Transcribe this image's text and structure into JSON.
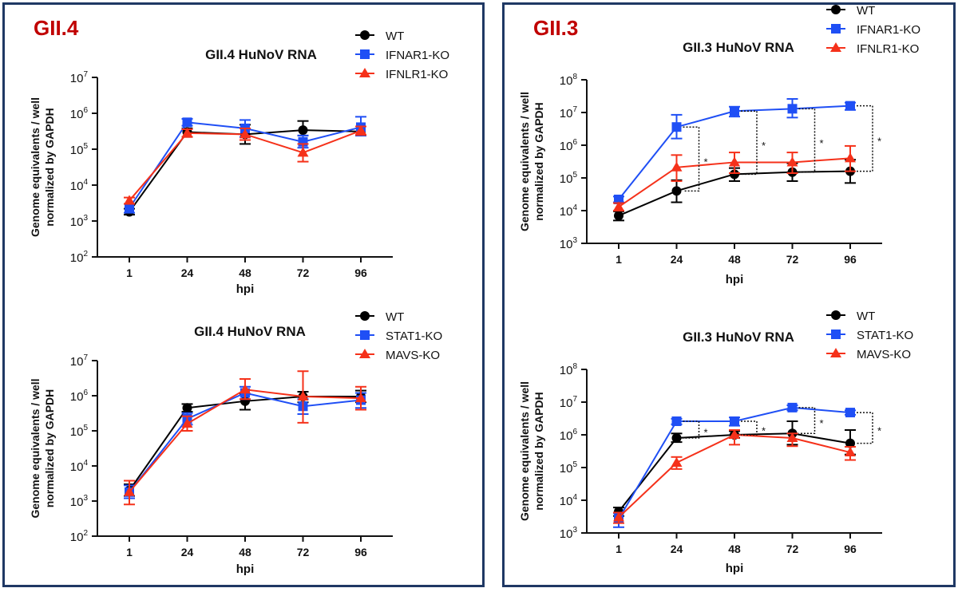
{
  "panels": [
    {
      "label": "GII.4"
    },
    {
      "label": "GII.3"
    }
  ],
  "colors": {
    "WT": "#000000",
    "blue": "#1f4ff5",
    "red": "#f5311a",
    "border": "#1f3864",
    "label": "#c00000"
  },
  "chart_data": [
    {
      "type": "line",
      "title": "GII.4 HuNoV RNA",
      "xlabel": "hpi",
      "ylabel": "Genome equivalents / well",
      "ylabel2": "normalized by GAPDH",
      "y_scale": "log",
      "ylim_exp": [
        2,
        7
      ],
      "categories": [
        "1",
        "24",
        "48",
        "72",
        "96"
      ],
      "legend_position": "top-right",
      "series": [
        {
          "name": "WT",
          "marker": "circle",
          "color": "#000000",
          "values": [
            1800.0,
            300000.0,
            260000.0,
            340000.0,
            310000.0
          ],
          "err_lo": [
            1500.0,
            220000.0,
            140000.0,
            240000.0,
            240000.0
          ],
          "err_hi": [
            2200.0,
            380000.0,
            480000.0,
            610000.0,
            430000.0
          ]
        },
        {
          "name": "IFNAR1-KO",
          "marker": "square",
          "color": "#1f4ff5",
          "values": [
            2300.0,
            560000.0,
            380000.0,
            160000.0,
            410000.0
          ],
          "err_lo": [
            1700.0,
            450000.0,
            220000.0,
            110000.0,
            240000.0
          ],
          "err_hi": [
            3000.0,
            700000.0,
            650000.0,
            240000.0,
            800000.0
          ]
        },
        {
          "name": "IFNLR1-KO",
          "marker": "triangle",
          "color": "#f5311a",
          "values": [
            3700.0,
            280000.0,
            260000.0,
            80000.0,
            330000.0
          ],
          "err_lo": [
            3000.0,
            220000.0,
            180000.0,
            45000.0,
            250000.0
          ],
          "err_hi": [
            4500.0,
            360000.0,
            380000.0,
            140000.0,
            430000.0
          ]
        }
      ],
      "significance": []
    },
    {
      "type": "line",
      "title": "GII.4 HuNoV RNA",
      "xlabel": "hpi",
      "ylabel": "Genome equivalents / well",
      "ylabel2": "normalized by GAPDH",
      "y_scale": "log",
      "ylim_exp": [
        2,
        7
      ],
      "categories": [
        "1",
        "24",
        "48",
        "72",
        "96"
      ],
      "legend_position": "top-right",
      "series": [
        {
          "name": "WT",
          "marker": "circle",
          "color": "#000000",
          "values": [
            2000.0,
            450000.0,
            700000.0,
            950000.0,
            950000.0
          ],
          "err_lo": [
            1400.0,
            350000.0,
            400000.0,
            650000.0,
            650000.0
          ],
          "err_hi": [
            3000.0,
            580000.0,
            1100000.0,
            1300000.0,
            1400000.0
          ]
        },
        {
          "name": "STAT1-KO",
          "marker": "square",
          "color": "#1f4ff5",
          "values": [
            1800.0,
            220000.0,
            1200000.0,
            500000.0,
            750000.0
          ],
          "err_lo": [
            1200.0,
            150000.0,
            800000.0,
            300000.0,
            450000.0
          ],
          "err_hi": [
            2800.0,
            320000.0,
            1800000.0,
            800000.0,
            1200000.0
          ]
        },
        {
          "name": "MAVS-KO",
          "marker": "triangle",
          "color": "#f5311a",
          "values": [
            1800.0,
            160000.0,
            1500000.0,
            950000.0,
            850000.0
          ],
          "err_lo": [
            800.0,
            100000.0,
            800000.0,
            170000.0,
            400000.0
          ],
          "err_hi": [
            3800.0,
            260000.0,
            3000000.0,
            5000000.0,
            1800000.0
          ]
        }
      ],
      "significance": []
    },
    {
      "type": "line",
      "title": "GII.3 HuNoV RNA",
      "xlabel": "hpi",
      "ylabel": "Genome equivalents / well",
      "ylabel2": "normalized by GAPDH",
      "y_scale": "log",
      "ylim_exp": [
        3,
        8
      ],
      "categories": [
        "1",
        "24",
        "48",
        "72",
        "96"
      ],
      "legend_position": "top-right",
      "series": [
        {
          "name": "WT",
          "marker": "circle",
          "color": "#000000",
          "values": [
            7000.0,
            40000.0,
            130000.0,
            150000.0,
            160000.0
          ],
          "err_lo": [
            5000.0,
            18000.0,
            80000.0,
            80000.0,
            70000.0
          ],
          "err_hi": [
            9500.0,
            85000.0,
            200000.0,
            280000.0,
            360000.0
          ]
        },
        {
          "name": "IFNAR1-KO",
          "marker": "square",
          "color": "#1f4ff5",
          "values": [
            22000.0,
            3600000.0,
            11000000.0,
            13000000.0,
            16000000.0
          ],
          "err_lo": [
            18000.0,
            1600000.0,
            7500000.0,
            7000000.0,
            12000000.0
          ],
          "err_hi": [
            27000.0,
            8500000.0,
            15000000.0,
            26000000.0,
            20000000.0
          ]
        },
        {
          "name": "IFNLR1-KO",
          "marker": "triangle",
          "color": "#f5311a",
          "values": [
            13000.0,
            210000.0,
            300000.0,
            300000.0,
            400000.0
          ],
          "err_lo": [
            10000.0,
            80000.0,
            140000.0,
            140000.0,
            160000.0
          ],
          "err_hi": [
            17000.0,
            500000.0,
            600000.0,
            600000.0,
            950000.0
          ]
        }
      ],
      "significance": [
        {
          "at": "24",
          "hi": 3600000.0,
          "lo": 40000.0,
          "label": "*"
        },
        {
          "at": "48",
          "hi": 11000000.0,
          "lo": 130000.0,
          "label": "*"
        },
        {
          "at": "72",
          "hi": 13000000.0,
          "lo": 150000.0,
          "label": "*"
        },
        {
          "at": "96",
          "hi": 16000000.0,
          "lo": 160000.0,
          "label": "*"
        }
      ]
    },
    {
      "type": "line",
      "title": "GII.3 HuNoV RNA",
      "xlabel": "hpi",
      "ylabel": "Genome equivalents / well",
      "ylabel2": "normalized by GAPDH",
      "y_scale": "log",
      "ylim_exp": [
        3,
        8
      ],
      "categories": [
        "1",
        "24",
        "48",
        "72",
        "96"
      ],
      "legend_position": "top-right",
      "series": [
        {
          "name": "WT",
          "marker": "circle",
          "color": "#000000",
          "values": [
            4500.0,
            800000.0,
            1000000.0,
            1100000.0,
            550000.0
          ],
          "err_lo": [
            3300.0,
            600000.0,
            800000.0,
            500000.0,
            250000.0
          ],
          "err_hi": [
            6000.0,
            1100000.0,
            1300000.0,
            2600000.0,
            1400000.0
          ]
        },
        {
          "name": "STAT1-KO",
          "marker": "square",
          "color": "#1f4ff5",
          "values": [
            2700.0,
            2600000.0,
            2600000.0,
            6800000.0,
            4800000.0
          ],
          "err_lo": [
            1500.0,
            2100000.0,
            1900000.0,
            5600000.0,
            4100000.0
          ],
          "err_hi": [
            4000.0,
            3100000.0,
            3400000.0,
            8000000.0,
            5600000.0
          ]
        },
        {
          "name": "MAVS-KO",
          "marker": "triangle",
          "color": "#f5311a",
          "values": [
            3000.0,
            140000.0,
            1000000.0,
            800000.0,
            290000.0
          ],
          "err_lo": [
            2000.0,
            90000.0,
            500000.0,
            450000.0,
            170000.0
          ],
          "err_hi": [
            4200.0,
            210000.0,
            1400000.0,
            1100000.0,
            430000.0
          ]
        }
      ],
      "significance": [
        {
          "at": "24",
          "hi": 2600000.0,
          "lo": 800000.0,
          "label": "*"
        },
        {
          "at": "48",
          "hi": 2600000.0,
          "lo": 1000000.0,
          "label": "*"
        },
        {
          "at": "72",
          "hi": 6800000.0,
          "lo": 1100000.0,
          "label": "*"
        },
        {
          "at": "96",
          "hi": 4800000.0,
          "lo": 550000.0,
          "label": "*"
        }
      ]
    }
  ]
}
